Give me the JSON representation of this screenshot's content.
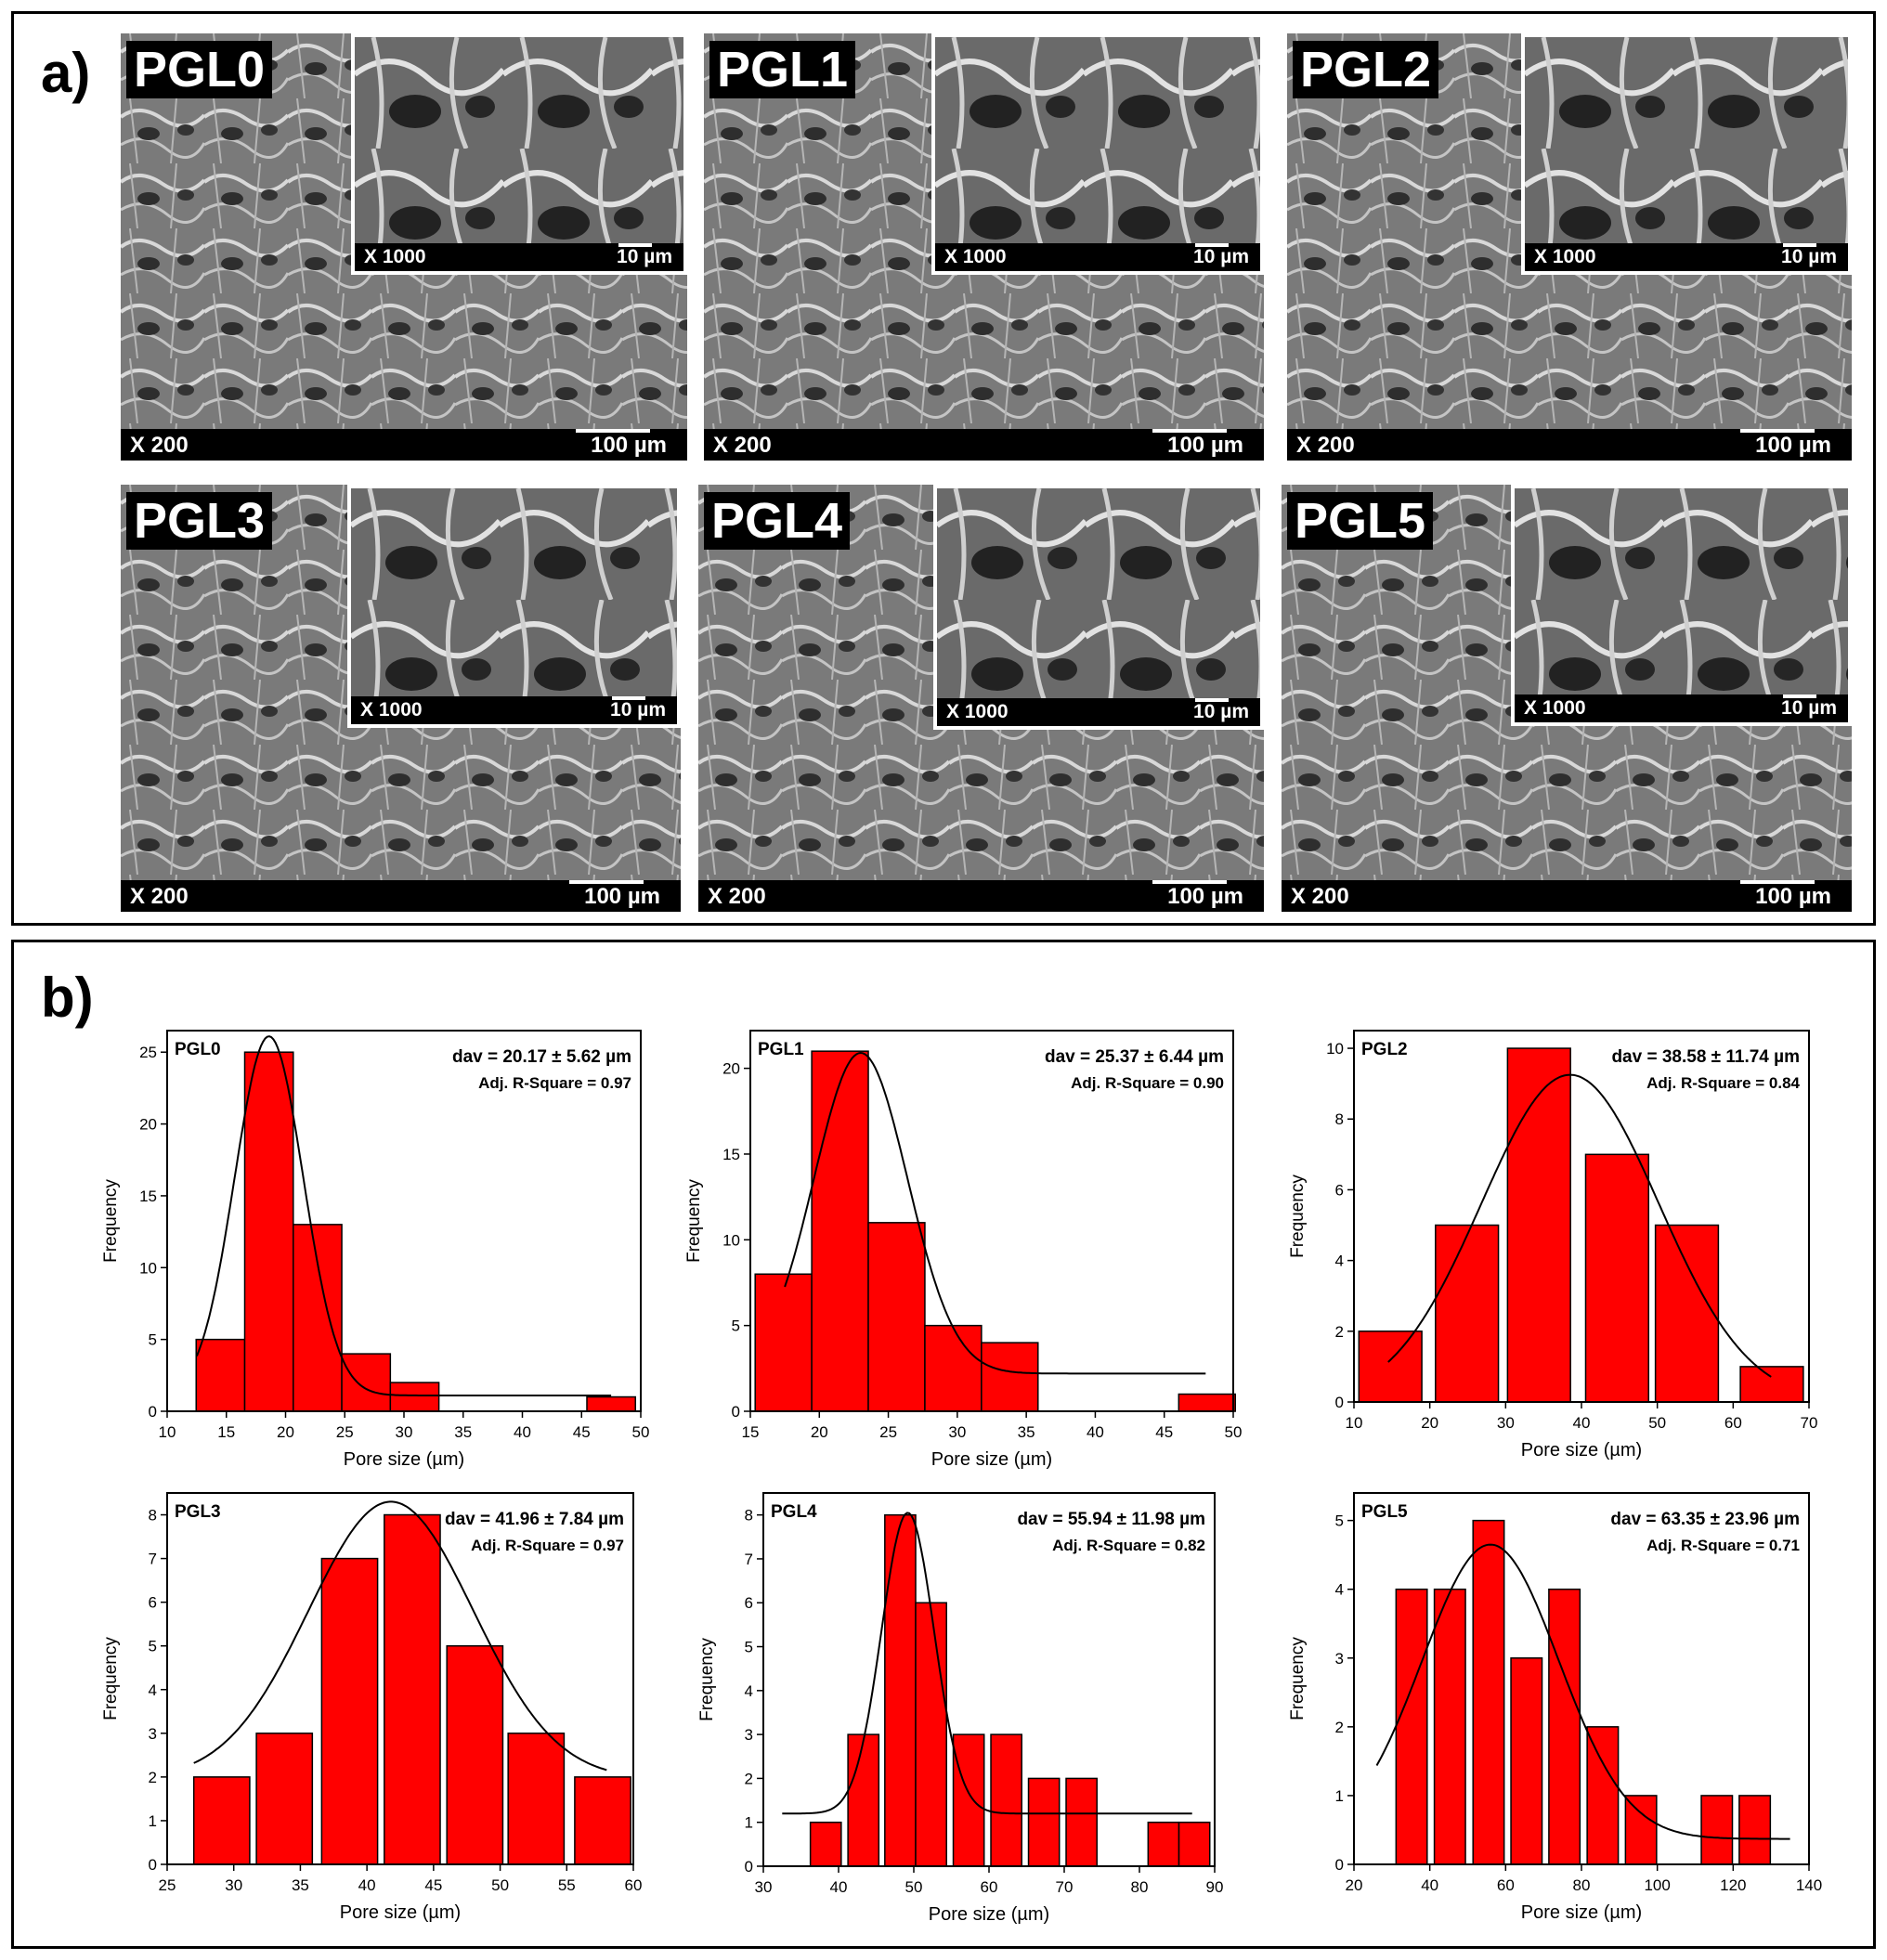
{
  "panel_a": {
    "label": "a)",
    "images": [
      {
        "sample": "PGL0",
        "mag": "X 200",
        "scale": "100 µm",
        "inset_mag": "X 1000",
        "inset_scale": "10 µm"
      },
      {
        "sample": "PGL1",
        "mag": "X 200",
        "scale": "100 µm",
        "inset_mag": "X 1000",
        "inset_scale": "10 µm"
      },
      {
        "sample": "PGL2",
        "mag": "X 200",
        "scale": "100 µm",
        "inset_mag": "X 1000",
        "inset_scale": "10 µm"
      },
      {
        "sample": "PGL3",
        "mag": "X 200",
        "scale": "100 µm",
        "inset_mag": "X 1000",
        "inset_scale": "10 µm"
      },
      {
        "sample": "PGL4",
        "mag": "X 200",
        "scale": "100 µm",
        "inset_mag": "X 1000",
        "inset_scale": "10 µm"
      },
      {
        "sample": "PGL5",
        "mag": "X 200",
        "scale": "100 µm",
        "inset_mag": "X 1000",
        "inset_scale": "10 µm"
      }
    ]
  },
  "panel_b": {
    "label": "b)"
  },
  "colors": {
    "bar_fill": "#ff0000",
    "bar_stroke": "#000000",
    "fit_line": "#000000"
  },
  "chart_data": [
    {
      "type": "bar",
      "title": "PGL0",
      "stat": "dav = 20.17 ± 5.62 µm",
      "rsq": "Adj. R-Square = 0.97",
      "xlabel": "Pore size (µm)",
      "ylabel": "Frequency",
      "xlim": [
        10,
        50
      ],
      "ylim": [
        0,
        26.5
      ],
      "xticks": [
        10,
        15,
        20,
        25,
        30,
        35,
        40,
        45,
        50
      ],
      "yticks": [
        0,
        5,
        10,
        15,
        20,
        25
      ],
      "bin_width": 4.1,
      "x": [
        14.5,
        18.6,
        22.7,
        26.8,
        30.9,
        47.5
      ],
      "values": [
        5,
        25,
        13,
        4,
        2,
        1
      ],
      "fit": {
        "mean": 18.6,
        "sigma": 2.9,
        "amp": 25,
        "base": 1.1,
        "from": 12.5,
        "to": 47.5
      }
    },
    {
      "type": "bar",
      "title": "PGL1",
      "stat": "dav = 25.37 ± 6.44 µm",
      "rsq": "Adj. R-Square = 0.90",
      "xlabel": "Pore size (µm)",
      "ylabel": "Frequency",
      "xlim": [
        15,
        50
      ],
      "ylim": [
        0,
        22.2
      ],
      "xticks": [
        15,
        20,
        25,
        30,
        35,
        40,
        45,
        50
      ],
      "yticks": [
        0,
        5,
        10,
        15,
        20
      ],
      "bin_width": 4.1,
      "x": [
        17.4,
        21.5,
        25.6,
        29.7,
        33.8,
        37.9,
        48.1
      ],
      "values": [
        8,
        21,
        11,
        5,
        4,
        0,
        1
      ],
      "fit": {
        "mean": 23,
        "sigma": 3.4,
        "amp": 18.7,
        "base": 2.2,
        "from": 17.5,
        "to": 48
      }
    },
    {
      "type": "bar",
      "title": "PGL2",
      "stat": "dav = 38.58 ± 11.74 µm",
      "rsq": "Adj. R-Square = 0.84",
      "xlabel": "Pore size (µm)",
      "ylabel": "Frequency",
      "xlim": [
        10,
        70
      ],
      "ylim": [
        0,
        10.5
      ],
      "xticks": [
        10,
        20,
        30,
        40,
        50,
        60,
        70
      ],
      "yticks": [
        0,
        2,
        4,
        6,
        8,
        10
      ],
      "bin_width": 8.3,
      "x": [
        14.8,
        24.9,
        34.4,
        44.7,
        53.9,
        65.1
      ],
      "values": [
        2,
        5,
        10,
        7,
        5,
        1
      ],
      "fit": {
        "mean": 38.5,
        "sigma": 11.7,
        "amp": 9.25,
        "base": 0,
        "from": 14.5,
        "to": 65
      }
    },
    {
      "type": "bar",
      "title": "PGL3",
      "stat": "dav = 41.96 ± 7.84 µm",
      "rsq": "Adj. R-Square = 0.97",
      "xlabel": "Pore size (µm)",
      "ylabel": "Frequency",
      "xlim": [
        25,
        60
      ],
      "ylim": [
        0,
        8.5
      ],
      "xticks": [
        25,
        30,
        35,
        40,
        45,
        50,
        55,
        60
      ],
      "yticks": [
        0,
        1,
        2,
        3,
        4,
        5,
        6,
        7,
        8
      ],
      "bin_width": 4.2,
      "x": [
        29.1,
        33.8,
        38.7,
        43.4,
        48.1,
        52.7,
        57.7
      ],
      "values": [
        2,
        3,
        7,
        8,
        5,
        3,
        2
      ],
      "fit": {
        "mean": 41.8,
        "sigma": 6.2,
        "amp": 6.35,
        "base": 1.95,
        "from": 27,
        "to": 58
      }
    },
    {
      "type": "bar",
      "title": "PGL4",
      "stat": "dav = 55.94 ± 11.98 µm",
      "rsq": "Adj. R-Square = 0.82",
      "xlabel": "Pore size (µm)",
      "ylabel": "Frequency",
      "xlim": [
        30,
        90
      ],
      "ylim": [
        0,
        8.5
      ],
      "xticks": [
        30,
        40,
        50,
        60,
        70,
        80,
        90
      ],
      "yticks": [
        0,
        1,
        2,
        3,
        4,
        5,
        6,
        7,
        8
      ],
      "bin_width": 4.1,
      "x": [
        38.3,
        43.3,
        48.2,
        52.3,
        57.3,
        62.3,
        67.3,
        72.3,
        83.2,
        87.3
      ],
      "values": [
        1,
        3,
        8,
        6,
        3,
        3,
        2,
        2,
        1,
        1
      ],
      "fit": {
        "mean": 49.2,
        "sigma": 3.5,
        "amp": 6.85,
        "base": 1.2,
        "from": 32.5,
        "to": 87
      }
    },
    {
      "type": "bar",
      "title": "PGL5",
      "stat": "dav = 63.35 ± 23.96 µm",
      "rsq": "Adj. R-Square = 0.71",
      "xlabel": "Pore size (µm)",
      "ylabel": "Frequency",
      "xlim": [
        20,
        140
      ],
      "ylim": [
        0,
        5.4
      ],
      "xticks": [
        20,
        40,
        60,
        80,
        100,
        120,
        140
      ],
      "yticks": [
        0,
        1,
        2,
        3,
        4,
        5
      ],
      "bin_width": 8.2,
      "x": [
        35.2,
        45.3,
        55.5,
        65.5,
        75.5,
        85.6,
        95.7,
        115.7,
        125.7
      ],
      "values": [
        4,
        4,
        5,
        3,
        4,
        2,
        1,
        1,
        1
      ],
      "fit": {
        "mean": 56,
        "sigma": 18,
        "amp": 4.28,
        "base": 0.37,
        "from": 26,
        "to": 135
      }
    }
  ]
}
